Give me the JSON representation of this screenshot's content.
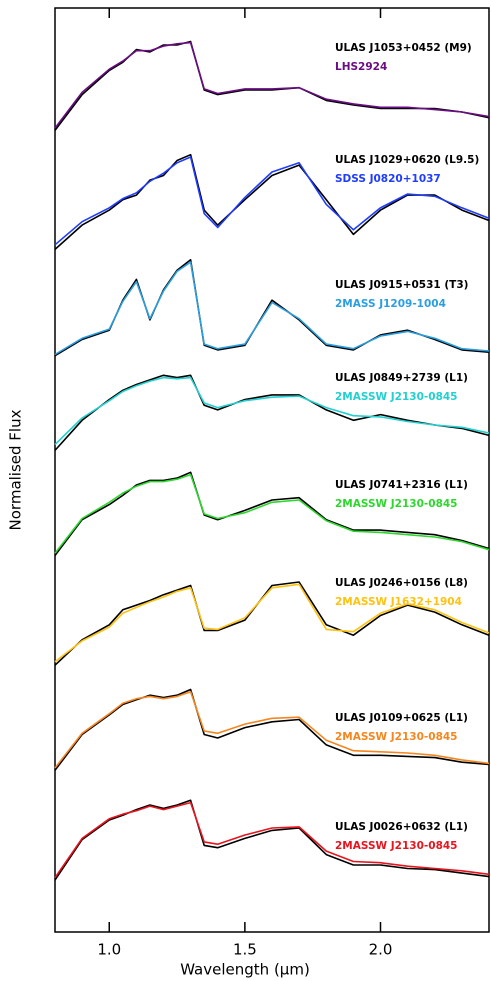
{
  "chart_data": {
    "type": "line",
    "x_label": "Wavelength (μm)",
    "y_label": "Normalised Flux",
    "x": [
      0.8,
      0.9,
      1.0,
      1.05,
      1.1,
      1.15,
      1.2,
      1.25,
      1.3,
      1.35,
      1.4,
      1.5,
      1.6,
      1.7,
      1.8,
      1.9,
      2.0,
      2.1,
      2.2,
      2.3,
      2.4
    ],
    "xlim": [
      0.8,
      2.4
    ],
    "ylim": [
      0,
      8
    ],
    "xticks": [
      {
        "value": 1,
        "label": "1.0"
      },
      1.5,
      {
        "value": 2,
        "label": "2.0"
      }
    ],
    "series": [
      {
        "name": "ULAS J1053+0452 (M9)",
        "color": "#000000",
        "values": [
          6.94,
          7.25,
          7.46,
          7.53,
          7.64,
          7.62,
          7.68,
          7.68,
          7.71,
          7.29,
          7.25,
          7.29,
          7.29,
          7.31,
          7.2,
          7.16,
          7.13,
          7.13,
          7.13,
          7.1,
          7.05
        ]
      },
      {
        "name": "LHS2924",
        "color": "#6a0d83",
        "values": [
          6.96,
          7.27,
          7.47,
          7.54,
          7.63,
          7.63,
          7.67,
          7.69,
          7.7,
          7.3,
          7.26,
          7.3,
          7.3,
          7.31,
          7.21,
          7.17,
          7.14,
          7.14,
          7.12,
          7.1,
          7.06
        ]
      },
      {
        "name": "ULAS J1029+0620 (L9.5)",
        "color": "#000000",
        "values": [
          5.91,
          6.12,
          6.25,
          6.34,
          6.38,
          6.51,
          6.55,
          6.68,
          6.73,
          6.25,
          6.12,
          6.34,
          6.55,
          6.64,
          6.34,
          6.04,
          6.25,
          6.38,
          6.38,
          6.25,
          6.16
        ]
      },
      {
        "name": "SDSS J0820+1037",
        "color": "#1f3cff",
        "values": [
          5.95,
          6.15,
          6.27,
          6.35,
          6.4,
          6.5,
          6.57,
          6.66,
          6.71,
          6.22,
          6.1,
          6.36,
          6.58,
          6.66,
          6.3,
          6.08,
          6.27,
          6.39,
          6.37,
          6.27,
          6.18
        ]
      },
      {
        "name": "ULAS J0915+0531 (T3)",
        "color": "#000000",
        "values": [
          4.99,
          5.13,
          5.21,
          5.47,
          5.65,
          5.3,
          5.56,
          5.73,
          5.82,
          5.08,
          5.04,
          5.08,
          5.47,
          5.3,
          5.08,
          5.04,
          5.17,
          5.21,
          5.13,
          5.04,
          5.02
        ]
      },
      {
        "name": "2MASS J1209-1004",
        "color": "#2a9fe0",
        "values": [
          5.0,
          5.14,
          5.22,
          5.46,
          5.63,
          5.31,
          5.55,
          5.72,
          5.8,
          5.09,
          5.05,
          5.09,
          5.45,
          5.31,
          5.09,
          5.05,
          5.16,
          5.2,
          5.14,
          5.05,
          5.03
        ]
      },
      {
        "name": "ULAS J0849+2739 (L1)",
        "color": "#000000",
        "values": [
          4.17,
          4.43,
          4.61,
          4.69,
          4.74,
          4.78,
          4.82,
          4.8,
          4.82,
          4.56,
          4.52,
          4.61,
          4.65,
          4.65,
          4.52,
          4.43,
          4.48,
          4.43,
          4.39,
          4.36,
          4.3
        ]
      },
      {
        "name": "2MASSW J2130-0845",
        "color": "#22d0d0",
        "values": [
          4.22,
          4.45,
          4.6,
          4.68,
          4.73,
          4.77,
          4.8,
          4.79,
          4.8,
          4.58,
          4.54,
          4.6,
          4.63,
          4.64,
          4.54,
          4.47,
          4.46,
          4.42,
          4.39,
          4.37,
          4.32
        ]
      },
      {
        "name": "ULAS J0741+2316 (L1)",
        "color": "#000000",
        "values": [
          3.26,
          3.57,
          3.7,
          3.78,
          3.87,
          3.91,
          3.91,
          3.93,
          3.98,
          3.61,
          3.57,
          3.65,
          3.74,
          3.76,
          3.57,
          3.48,
          3.48,
          3.46,
          3.44,
          3.39,
          3.32
        ]
      },
      {
        "name": "2MASSW J2130-0845",
        "color": "#2dd82d",
        "values": [
          3.28,
          3.58,
          3.72,
          3.8,
          3.86,
          3.9,
          3.9,
          3.92,
          3.96,
          3.62,
          3.58,
          3.63,
          3.72,
          3.74,
          3.56,
          3.47,
          3.46,
          3.44,
          3.42,
          3.38,
          3.31
        ]
      },
      {
        "name": "ULAS J0246+0156 (L8)",
        "color": "#000000",
        "values": [
          2.31,
          2.53,
          2.66,
          2.79,
          2.83,
          2.87,
          2.92,
          2.96,
          3.0,
          2.61,
          2.61,
          2.7,
          3.0,
          3.03,
          2.66,
          2.57,
          2.74,
          2.83,
          2.77,
          2.66,
          2.57
        ]
      },
      {
        "name": "2MASSW J1632+1904",
        "color": "#ffc20e",
        "values": [
          2.34,
          2.52,
          2.64,
          2.76,
          2.81,
          2.86,
          2.9,
          2.95,
          2.98,
          2.63,
          2.62,
          2.72,
          2.98,
          3.01,
          2.62,
          2.6,
          2.76,
          2.84,
          2.79,
          2.68,
          2.59
        ]
      },
      {
        "name": "ULAS J0109+0625 (L1)",
        "color": "#000000",
        "values": [
          1.4,
          1.71,
          1.88,
          1.97,
          2.01,
          2.05,
          2.03,
          2.05,
          2.1,
          1.71,
          1.68,
          1.77,
          1.82,
          1.84,
          1.62,
          1.53,
          1.53,
          1.52,
          1.51,
          1.47,
          1.45
        ]
      },
      {
        "name": "2MASSW J2130-0845",
        "color": "#f5861f",
        "values": [
          1.42,
          1.72,
          1.89,
          1.98,
          2.02,
          2.04,
          2.02,
          2.04,
          2.08,
          1.74,
          1.72,
          1.8,
          1.85,
          1.86,
          1.66,
          1.57,
          1.56,
          1.55,
          1.53,
          1.49,
          1.46
        ]
      },
      {
        "name": "ULAS J0026+0632 (L1)",
        "color": "#000000",
        "values": [
          0.45,
          0.8,
          0.97,
          1.01,
          1.06,
          1.1,
          1.07,
          1.1,
          1.14,
          0.75,
          0.73,
          0.81,
          0.88,
          0.9,
          0.67,
          0.58,
          0.58,
          0.55,
          0.54,
          0.51,
          0.48
        ]
      },
      {
        "name": "2MASSW J2130-0845",
        "color": "#e8141e",
        "values": [
          0.47,
          0.81,
          0.98,
          1.02,
          1.05,
          1.09,
          1.06,
          1.09,
          1.12,
          0.78,
          0.76,
          0.84,
          0.9,
          0.91,
          0.7,
          0.61,
          0.6,
          0.57,
          0.55,
          0.53,
          0.5
        ]
      }
    ]
  }
}
